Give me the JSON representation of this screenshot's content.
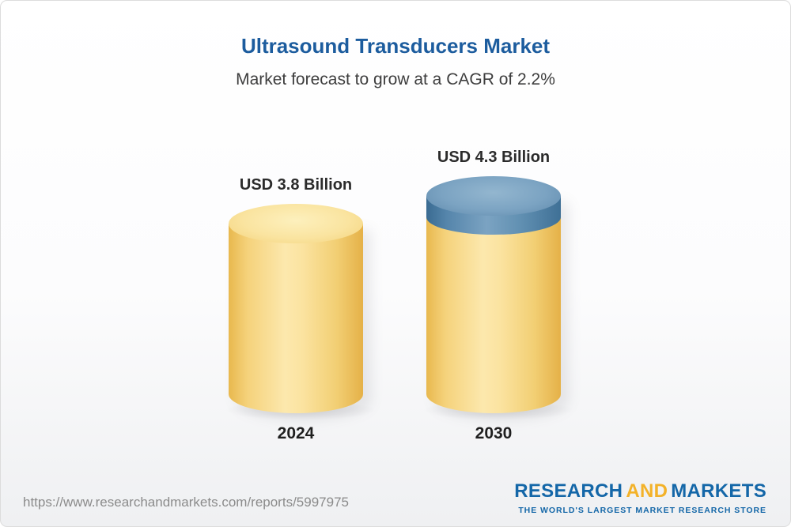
{
  "header": {
    "title": "Ultrasound Transducers Market",
    "subtitle": "Market forecast to grow at a CAGR of 2.2%",
    "title_color": "#1c5c9e"
  },
  "chart_data": {
    "type": "bar",
    "categories": [
      "2024",
      "2030"
    ],
    "values": [
      3.8,
      4.3
    ],
    "value_labels": [
      "USD 3.8 Billion",
      "USD 4.3 Billion"
    ],
    "unit": "USD Billion",
    "cagr": "2.2%",
    "title": "Ultrasound Transducers Market",
    "subtitle": "Market forecast to grow at a CAGR of 2.2%",
    "ylim": [
      0,
      4.3
    ],
    "bar_color": "#f5d27b",
    "growth_cap_color": "#5d88ab",
    "legend": "off",
    "grid": "off"
  },
  "footer": {
    "url": "https://www.researchandmarkets.com/reports/5997975",
    "logo": {
      "part1": "RESEARCH",
      "part2": "AND",
      "part3": "MARKETS",
      "tagline": "THE WORLD'S LARGEST MARKET RESEARCH STORE",
      "blue": "#1467a8",
      "yellow": "#f3b229"
    }
  }
}
